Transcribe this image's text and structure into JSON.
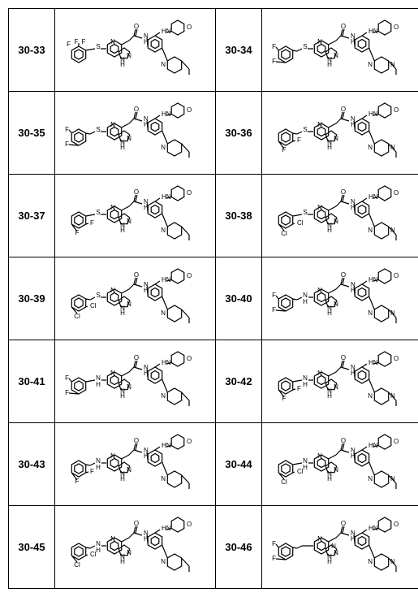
{
  "rows": [
    {
      "left_label": "30-33",
      "left_variant": {
        "linker": "S",
        "core": "pyrrolopyridine",
        "sub": [
          "CF3-phenyl"
        ],
        "amine": "piperidine"
      },
      "right_label": "30-34",
      "right_variant": {
        "linker": "S",
        "core": "pyrrolopyridine",
        "sub": [
          "3,5-diF-benzyl"
        ],
        "amine": "piperazine"
      }
    },
    {
      "left_label": "30-35",
      "left_variant": {
        "linker": "S",
        "core": "pyrrolopyridine",
        "sub": [
          "3,5-diF-benzyl"
        ],
        "amine": "piperidine"
      },
      "right_label": "30-36",
      "right_variant": {
        "linker": "S",
        "core": "pyrrolopyridine",
        "sub": [
          "2,4-diF-benzyl"
        ],
        "amine": "piperazine"
      }
    },
    {
      "left_label": "30-37",
      "left_variant": {
        "linker": "S",
        "core": "pyrrolopyridine",
        "sub": [
          "2,4-diF-phenyl"
        ],
        "amine": "piperidine"
      },
      "right_label": "30-38",
      "right_variant": {
        "linker": "S",
        "core": "pyrrolopyridine",
        "sub": [
          "2,4-diCl-phenyl"
        ],
        "amine": "piperazine"
      }
    },
    {
      "left_label": "30-39",
      "left_variant": {
        "linker": "S",
        "core": "pyrrolopyridine",
        "sub": [
          "2,4-diCl-benzyl"
        ],
        "amine": "piperidine"
      },
      "right_label": "30-40",
      "right_variant": {
        "linker": "NH",
        "core": "pyrrolopyridine",
        "sub": [
          "3,5-diF-benzyl"
        ],
        "amine": "piperazine"
      }
    },
    {
      "left_label": "30-41",
      "left_variant": {
        "linker": "NH",
        "core": "pyrrolopyridine",
        "sub": [
          "3,5-diF-phenyl"
        ],
        "amine": "piperidine"
      },
      "right_label": "30-42",
      "right_variant": {
        "linker": "NH",
        "core": "pyrrolopyridine",
        "sub": [
          "2,4-diF-phenyl"
        ],
        "amine": "piperazine"
      }
    },
    {
      "left_label": "30-43",
      "left_variant": {
        "linker": "NH",
        "core": "pyrrolopyridine",
        "sub": [
          "2,4-diF-benzyl"
        ],
        "amine": "piperidine"
      },
      "right_label": "30-44",
      "right_variant": {
        "linker": "NH",
        "core": "pyrrolopyridine",
        "sub": [
          "2,4-diCl-phenyl"
        ],
        "amine": "piperazine"
      }
    },
    {
      "left_label": "30-45",
      "left_variant": {
        "linker": "NH",
        "core": "pyrrolopyridine",
        "sub": [
          "2,4-diCl-benzyl"
        ],
        "amine": "piperidine"
      },
      "right_label": "30-46",
      "right_variant": {
        "linker": "CH2",
        "core": "triazolopyrimidine",
        "sub": [
          "3,5-diF-benzyl"
        ],
        "amine": "piperazine"
      }
    }
  ],
  "style": {
    "stroke": "#000000",
    "stroke_width": 1.2,
    "font": "10px Arial",
    "atom_font": "9px Arial"
  }
}
